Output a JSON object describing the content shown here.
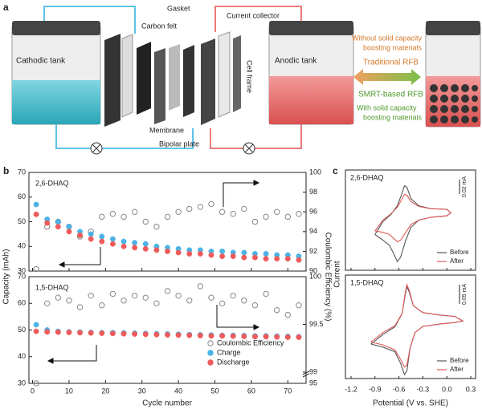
{
  "panel_a": {
    "label": "a",
    "cathodic_tank": "Cathodic tank",
    "anodic_tank": "Anodic tank",
    "carbon_felt": "Carbon felt",
    "gasket": "Gasket",
    "current_collector": "Current collector",
    "cell_frame": "Cell frame",
    "membrane": "Membrane",
    "bipolar_plate": "Bipolar plate",
    "without": [
      "Without solid capacity",
      "boosting materials"
    ],
    "traditional": "Traditional RFB",
    "smrt": "SMRT-based RFB",
    "with": [
      "With solid capacity",
      "boosting materials"
    ]
  },
  "panel_b": {
    "label": "b",
    "ylabel": "Capacity (mAh)",
    "y2label": "Coulombic Efficiency (%)",
    "xlabel": "Cycle number",
    "legend": [
      {
        "name": "Coulombic Efficiency",
        "color": "#888888",
        "marker": "hollow"
      },
      {
        "name": "Charge",
        "color": "#4bb3e6",
        "marker": "filled"
      },
      {
        "name": "Discharge",
        "color": "#ef5b5b",
        "marker": "filled"
      }
    ],
    "chart_data": [
      {
        "type": "scatter",
        "label": "2,6-DHAQ",
        "x": [
          1,
          4,
          7,
          10,
          13,
          16,
          19,
          22,
          25,
          28,
          31,
          34,
          37,
          40,
          43,
          46,
          49,
          52,
          55,
          58,
          61,
          64,
          67,
          70,
          73
        ],
        "xlim": [
          -1,
          75
        ],
        "xticks": [
          0,
          10,
          20,
          30,
          40,
          50,
          60,
          70
        ],
        "ylim": [
          30,
          70
        ],
        "yticks": [
          30,
          40,
          50,
          60,
          70
        ],
        "y2lim": [
          90,
          100
        ],
        "y2ticks": [
          90,
          92,
          94,
          96,
          98,
          100
        ],
        "series": [
          {
            "axis": "y2",
            "values": [
              90.2,
              94.5,
              95.0,
              94.5,
              93.5,
              94.0,
              95.5,
              95.8,
              95.5,
              96.0,
              95.0,
              94.5,
              95.5,
              96.0,
              96.3,
              96.5,
              96.8,
              96.0,
              95.8,
              96.3,
              95.0,
              95.5,
              96.0,
              95.5,
              95.8
            ]
          },
          {
            "axis": "y",
            "values": [
              57,
              51,
              50,
              48,
              46,
              45,
              44,
              43,
              42,
              41.5,
              41,
              40,
              39.5,
              39,
              38.5,
              38.5,
              38,
              38,
              37.5,
              37.5,
              37,
              37,
              36.5,
              36.5,
              36
            ]
          },
          {
            "axis": "y",
            "values": [
              53,
              49.5,
              48,
              46,
              44.5,
              43,
              42,
              41,
              40,
              39.5,
              39,
              38.5,
              38,
              37.5,
              37,
              37,
              36.5,
              36,
              36,
              35.5,
              35.5,
              35,
              35,
              35,
              34.5
            ]
          }
        ]
      },
      {
        "type": "scatter",
        "label": "1,5-DHAQ",
        "x": [
          1,
          4,
          7,
          10,
          13,
          16,
          19,
          22,
          25,
          28,
          31,
          34,
          37,
          40,
          43,
          46,
          49,
          52,
          55,
          58,
          61,
          64,
          67,
          70,
          73
        ],
        "xlim": [
          -1,
          75
        ],
        "xticks": [
          0,
          10,
          20,
          30,
          40,
          50,
          60,
          70
        ],
        "ylim": [
          30,
          70
        ],
        "yticks": [
          30,
          40,
          50,
          60,
          70
        ],
        "y2lim": [
          95,
          100
        ],
        "y2break": 99,
        "y2ticks": [
          95,
          99,
          99.5,
          100
        ],
        "series": [
          {
            "axis": "y2",
            "values": [
              95,
              99.72,
              99.78,
              99.75,
              99.68,
              99.8,
              99.7,
              99.82,
              99.75,
              99.8,
              99.78,
              99.72,
              99.85,
              99.8,
              99.75,
              99.9,
              99.78,
              99.72,
              99.8,
              99.75,
              99.7,
              99.82,
              99.65,
              99.6,
              99.7
            ]
          },
          {
            "axis": "y",
            "values": [
              52,
              50,
              49.5,
              49.3,
              49.2,
              49.1,
              49,
              49,
              48.9,
              48.8,
              48.7,
              48.6,
              48.5,
              48.4,
              48.3,
              48.2,
              48.1,
              48,
              48,
              47.9,
              47.8,
              47.8,
              47.7,
              47.6,
              47.5
            ]
          },
          {
            "axis": "y",
            "values": [
              49.5,
              49.3,
              49.2,
              49.1,
              49,
              48.9,
              48.8,
              48.7,
              48.6,
              48.5,
              48.4,
              48.3,
              48.2,
              48.1,
              48,
              47.9,
              47.8,
              47.8,
              47.7,
              47.6,
              47.5,
              47.5,
              47.4,
              47.3,
              47.3
            ]
          }
        ]
      }
    ]
  },
  "panel_c": {
    "label": "c",
    "ylabel": "Current",
    "xlabel": "Potential (V vs. SHE)",
    "chart_data": [
      {
        "type": "line",
        "label": "2,6-DHAQ",
        "scale_bar": {
          "value": 0.02,
          "label": "0.02 mA"
        },
        "xlim": [
          -1.27,
          0.36
        ],
        "xticks": [
          -1.2,
          -0.9,
          -0.6,
          -0.3,
          {
            "value": 0,
            "label": "0.0"
          },
          0.3
        ],
        "ylim": [
          -0.08,
          0.06
        ],
        "series": [
          {
            "name": "Before",
            "color": "#555555",
            "x": [
              -0.9,
              -0.8,
              -0.7,
              -0.62,
              -0.57,
              -0.53,
              -0.5,
              -0.45,
              -0.35,
              -0.2,
              0,
              0.05,
              0,
              -0.2,
              -0.35,
              -0.45,
              -0.52,
              -0.58,
              -0.62,
              -0.66,
              -0.72,
              -0.8,
              -0.9
            ],
            "values": [
              -0.03,
              -0.012,
              -0.002,
              0.01,
              0.025,
              0.038,
              0.036,
              0.02,
              0.01,
              0.006,
              0.005,
              0.0,
              -0.004,
              -0.006,
              -0.01,
              -0.02,
              -0.04,
              -0.062,
              -0.068,
              -0.058,
              -0.045,
              -0.038,
              -0.03
            ]
          },
          {
            "name": "After",
            "color": "#e05a5a",
            "x": [
              -0.9,
              -0.8,
              -0.7,
              -0.62,
              -0.57,
              -0.53,
              -0.5,
              -0.45,
              -0.35,
              -0.2,
              0,
              0.05,
              0,
              -0.2,
              -0.35,
              -0.45,
              -0.52,
              -0.58,
              -0.62,
              -0.66,
              -0.72,
              -0.8,
              -0.9
            ],
            "values": [
              -0.025,
              -0.01,
              -0.001,
              0.008,
              0.018,
              0.026,
              0.025,
              0.016,
              0.009,
              0.006,
              0.005,
              0.0,
              -0.004,
              -0.006,
              -0.01,
              -0.016,
              -0.028,
              -0.038,
              -0.04,
              -0.036,
              -0.03,
              -0.027,
              -0.025
            ]
          }
        ]
      },
      {
        "type": "line",
        "label": "1,5-DHAQ",
        "scale_bar": {
          "value": 0.05,
          "label": "0.05 mA"
        },
        "xlim": [
          -1.27,
          0.36
        ],
        "xticks": [
          -1.2,
          -0.9,
          -0.6,
          -0.3,
          {
            "value": 0,
            "label": "0.0"
          },
          0.3
        ],
        "ylim": [
          -0.15,
          0.12
        ],
        "series": [
          {
            "name": "Before",
            "color": "#555555",
            "x": [
              -0.95,
              -0.8,
              -0.65,
              -0.56,
              -0.52,
              -0.5,
              -0.47,
              -0.42,
              -0.3,
              -0.1,
              0.1,
              0.2,
              0.1,
              -0.1,
              -0.3,
              -0.4,
              -0.46,
              -0.5,
              -0.53,
              -0.58,
              -0.65,
              -0.8,
              -0.95
            ],
            "values": [
              -0.06,
              -0.035,
              -0.015,
              0.02,
              0.07,
              0.09,
              0.075,
              0.04,
              0.022,
              0.016,
              0.012,
              0.0,
              -0.004,
              -0.008,
              -0.014,
              -0.03,
              -0.07,
              -0.13,
              -0.14,
              -0.11,
              -0.08,
              -0.068,
              -0.06
            ]
          },
          {
            "name": "After",
            "color": "#e05a5a",
            "x": [
              -0.95,
              -0.8,
              -0.65,
              -0.56,
              -0.52,
              -0.5,
              -0.47,
              -0.42,
              -0.3,
              -0.1,
              0.1,
              0.2,
              0.1,
              -0.1,
              -0.3,
              -0.4,
              -0.46,
              -0.5,
              -0.53,
              -0.58,
              -0.65,
              -0.8,
              -0.95
            ],
            "values": [
              -0.055,
              -0.03,
              -0.012,
              0.02,
              0.075,
              0.095,
              0.08,
              0.04,
              0.022,
              0.016,
              0.012,
              0.0,
              -0.004,
              -0.008,
              -0.014,
              -0.03,
              -0.07,
              -0.115,
              -0.12,
              -0.1,
              -0.075,
              -0.062,
              -0.055
            ]
          }
        ]
      }
    ]
  }
}
